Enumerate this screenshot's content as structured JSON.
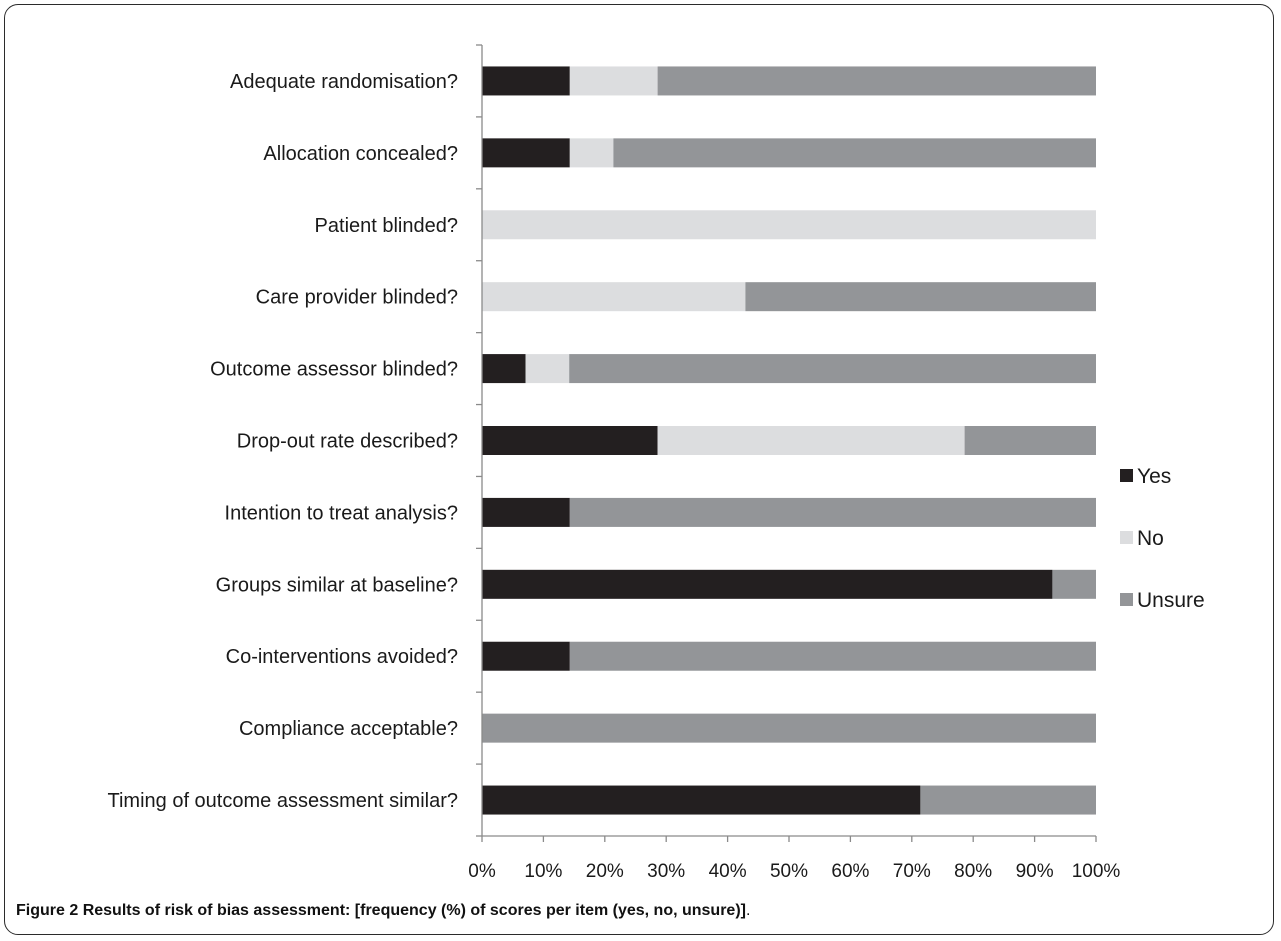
{
  "chart_data": {
    "type": "bar",
    "orientation": "horizontal",
    "stacked": true,
    "categories": [
      "Adequate randomisation?",
      "Allocation concealed?",
      "Patient blinded?",
      "Care provider blinded?",
      "Outcome assessor blinded?",
      "Drop-out rate described?",
      "Intention to treat analysis?",
      "Groups similar at baseline?",
      "Co-interventions avoided?",
      "Compliance acceptable?",
      "Timing of outcome assessment similar?"
    ],
    "series": [
      {
        "name": "Yes",
        "color": "#231f20",
        "values": [
          14.3,
          14.3,
          0,
          0,
          7.1,
          28.6,
          14.3,
          92.9,
          14.3,
          0,
          71.4
        ]
      },
      {
        "name": "No",
        "color": "#dcdddf",
        "values": [
          14.3,
          7.1,
          100,
          42.9,
          7.1,
          50.0,
          0,
          0,
          0,
          0,
          0
        ]
      },
      {
        "name": "Unsure",
        "color": "#939598",
        "values": [
          71.4,
          78.6,
          0,
          57.1,
          85.8,
          21.4,
          85.7,
          7.1,
          85.7,
          100,
          28.6
        ]
      }
    ],
    "xlim": [
      0,
      100
    ],
    "xticks": [
      "0%",
      "10%",
      "20%",
      "30%",
      "40%",
      "50%",
      "60%",
      "70%",
      "80%",
      "90%",
      "100%"
    ],
    "legend_position": "right",
    "grid": false
  },
  "caption": {
    "label": "Figure 2",
    "text": "Results of risk of bias assessment: [frequency (%) of scores per item (yes, no, unsure)]",
    "suffix": "."
  }
}
